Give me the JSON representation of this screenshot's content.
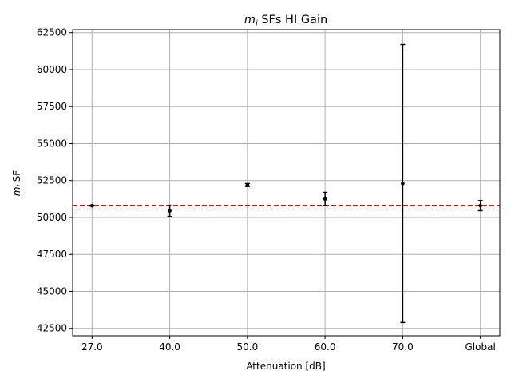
{
  "chart_data": {
    "type": "scatter",
    "title": "m_i SFs HI Gain",
    "title_parts": {
      "var": "m",
      "sub": "i",
      "rest": " SFs HI Gain"
    },
    "xlabel": "Attenuation [dB]",
    "ylabel": "m_i SF",
    "ylabel_parts": {
      "var": "m",
      "sub": "i",
      "rest": " SF"
    },
    "categories": [
      "27.0",
      "40.0",
      "50.0",
      "60.0",
      "70.0",
      "Global"
    ],
    "series": [
      {
        "marker": "point",
        "color": "#000000",
        "values": [
          50800,
          50450,
          52200,
          51250,
          52300,
          50800
        ],
        "errors": [
          30,
          380,
          100,
          450,
          9400,
          340
        ]
      }
    ],
    "reference_line": {
      "y": 50800,
      "color": "#ff0000",
      "style": "dashed"
    },
    "ylim": [
      42000,
      62700
    ],
    "yticks": [
      42500,
      45000,
      47500,
      50000,
      52500,
      55000,
      57500,
      60000,
      62500
    ],
    "grid": true,
    "legend": "none"
  }
}
